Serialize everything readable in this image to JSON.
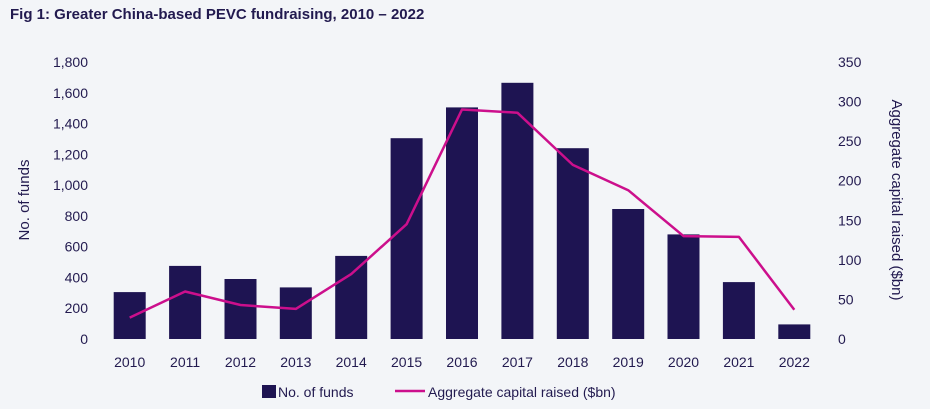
{
  "title": "Fig 1: Greater China-based PEVC fundraising, 2010 – 2022",
  "colors": {
    "bars": "#1e1452",
    "line": "#cc0f8c",
    "text": "#221a4f",
    "background": "#f3f5f8"
  },
  "chart_data": {
    "type": "bar",
    "categories": [
      "2010",
      "2011",
      "2012",
      "2013",
      "2014",
      "2015",
      "2016",
      "2017",
      "2018",
      "2019",
      "2020",
      "2021",
      "2022"
    ],
    "series": [
      {
        "name": "No. of funds",
        "type": "bar",
        "axis": "left",
        "values": [
          305,
          475,
          390,
          335,
          540,
          1305,
          1505,
          1665,
          1240,
          845,
          680,
          370,
          95
        ]
      },
      {
        "name": "Aggregate capital raised ($bn)",
        "type": "line",
        "axis": "right",
        "values": [
          27,
          60,
          43,
          38,
          82,
          145,
          290,
          286,
          220,
          188,
          130,
          129,
          37
        ]
      }
    ],
    "ylabel": "No. of funds",
    "y2label": "Aggregate capital raised ($bn)",
    "ylim": [
      0,
      1800
    ],
    "y2lim": [
      0,
      350
    ],
    "yticks": [
      "0",
      "200",
      "400",
      "600",
      "800",
      "1,000",
      "1,200",
      "1,400",
      "1,600",
      "1,800"
    ],
    "y2ticks": [
      "0",
      "50",
      "100",
      "150",
      "200",
      "250",
      "300",
      "350"
    ],
    "grid": false,
    "legend": "bottom-center"
  }
}
